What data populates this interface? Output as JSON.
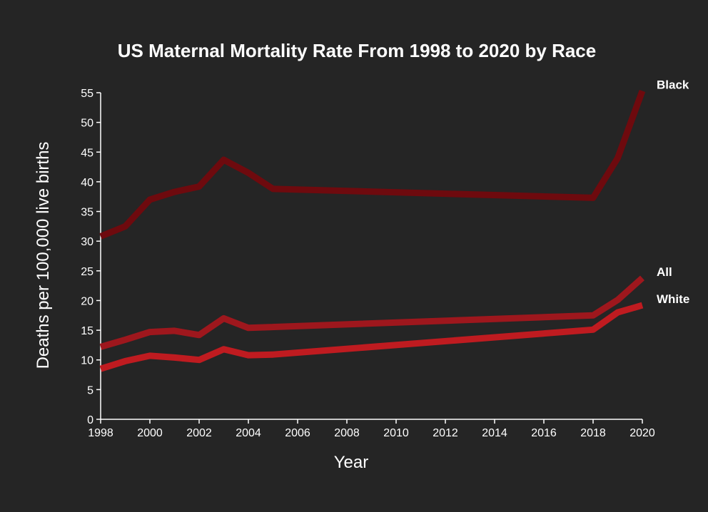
{
  "chart_data": {
    "type": "line",
    "title": "US Maternal Mortality Rate From 1998 to 2020 by Race",
    "xlabel": "Year",
    "ylabel": "Deaths per 100,000 live births",
    "xlim": [
      1998,
      2020
    ],
    "ylim": [
      0,
      55
    ],
    "x_ticks": [
      "1998",
      "2000",
      "2002",
      "2004",
      "2006",
      "2008",
      "2010",
      "2012",
      "2014",
      "2016",
      "2018",
      "2020"
    ],
    "y_ticks": [
      "0",
      "5",
      "10",
      "15",
      "20",
      "25",
      "30",
      "35",
      "40",
      "45",
      "50",
      "55"
    ],
    "grid": false,
    "legend": "direct labels at line ends",
    "background_color": "#252525",
    "series": [
      {
        "name": "Black",
        "color": "#6e0a0e",
        "x": [
          1998,
          1999,
          2000,
          2001,
          2002,
          2003,
          2004,
          2005,
          2018,
          2019,
          2020
        ],
        "y": [
          30.8,
          32.5,
          37.0,
          38.3,
          39.2,
          43.7,
          41.5,
          38.8,
          37.3,
          44.0,
          55.3
        ]
      },
      {
        "name": "All",
        "color": "#9e171d",
        "x": [
          1998,
          1999,
          2000,
          2001,
          2002,
          2003,
          2004,
          2018,
          2019,
          2020
        ],
        "y": [
          12.2,
          13.4,
          14.7,
          14.9,
          14.2,
          17.0,
          15.4,
          17.5,
          20.1,
          23.8
        ]
      },
      {
        "name": "White",
        "color": "#bf1b20",
        "x": [
          1998,
          1999,
          2000,
          2001,
          2002,
          2003,
          2004,
          2005,
          2018,
          2019,
          2020
        ],
        "y": [
          8.5,
          9.8,
          10.7,
          10.4,
          10.0,
          11.8,
          10.8,
          10.9,
          15.1,
          18.0,
          19.2
        ]
      }
    ]
  }
}
